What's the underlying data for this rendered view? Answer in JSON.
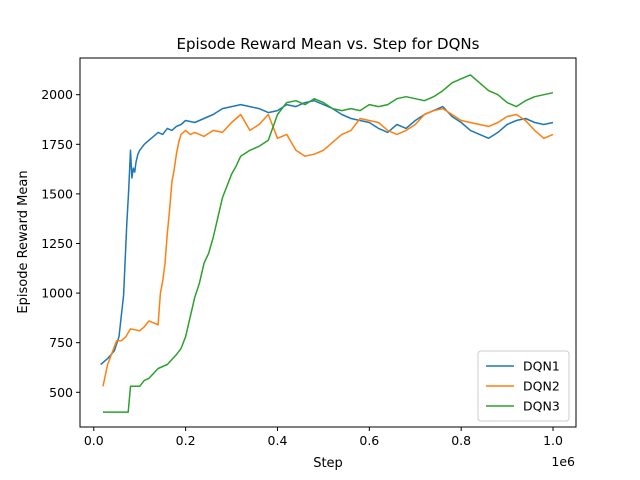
{
  "chart_data": {
    "type": "line",
    "title": "Episode Reward Mean vs. Step for DQNs",
    "xlabel": "Step",
    "ylabel": "Episode Reward Mean",
    "x_offset_label": "1e6",
    "xlim": [
      -30000,
      1050000
    ],
    "ylim": [
      325,
      2185
    ],
    "x_ticks": [
      0,
      200000,
      400000,
      600000,
      800000,
      1000000
    ],
    "x_tick_labels": [
      "0.0",
      "0.2",
      "0.4",
      "0.6",
      "0.8",
      "1.0"
    ],
    "y_ticks": [
      500,
      750,
      1000,
      1250,
      1500,
      1750,
      2000
    ],
    "y_tick_labels": [
      "500",
      "750",
      "1000",
      "1250",
      "1500",
      "1750",
      "2000"
    ],
    "grid": false,
    "legend_position": "lower-right",
    "series": [
      {
        "name": "DQN1",
        "color": "#1f77b4",
        "x": [
          15000,
          30000,
          45000,
          55000,
          65000,
          72000,
          76000,
          80000,
          83000,
          86000,
          89000,
          92000,
          96000,
          100000,
          110000,
          120000,
          130000,
          140000,
          150000,
          160000,
          170000,
          180000,
          190000,
          200000,
          220000,
          240000,
          260000,
          280000,
          300000,
          320000,
          340000,
          360000,
          380000,
          400000,
          420000,
          440000,
          460000,
          480000,
          500000,
          520000,
          540000,
          560000,
          580000,
          600000,
          620000,
          640000,
          660000,
          680000,
          700000,
          720000,
          740000,
          760000,
          780000,
          800000,
          820000,
          840000,
          860000,
          880000,
          900000,
          920000,
          940000,
          960000,
          980000,
          1000000
        ],
        "y": [
          640,
          670,
          710,
          780,
          990,
          1350,
          1520,
          1720,
          1580,
          1630,
          1610,
          1660,
          1700,
          1720,
          1750,
          1770,
          1790,
          1810,
          1800,
          1830,
          1820,
          1840,
          1850,
          1870,
          1860,
          1880,
          1900,
          1930,
          1940,
          1950,
          1940,
          1930,
          1910,
          1920,
          1950,
          1940,
          1960,
          1970,
          1950,
          1930,
          1900,
          1880,
          1870,
          1860,
          1830,
          1810,
          1850,
          1830,
          1870,
          1900,
          1920,
          1940,
          1890,
          1860,
          1820,
          1800,
          1780,
          1810,
          1850,
          1870,
          1880,
          1860,
          1850,
          1860
        ]
      },
      {
        "name": "DQN2",
        "color": "#ff7f0e",
        "x": [
          20000,
          30000,
          40000,
          50000,
          60000,
          70000,
          80000,
          90000,
          100000,
          110000,
          120000,
          130000,
          140000,
          145000,
          150000,
          155000,
          160000,
          165000,
          170000,
          175000,
          180000,
          185000,
          190000,
          195000,
          200000,
          210000,
          220000,
          240000,
          260000,
          280000,
          300000,
          320000,
          340000,
          360000,
          380000,
          400000,
          420000,
          440000,
          460000,
          480000,
          500000,
          520000,
          540000,
          560000,
          580000,
          600000,
          620000,
          640000,
          660000,
          680000,
          700000,
          720000,
          740000,
          760000,
          780000,
          800000,
          820000,
          840000,
          860000,
          880000,
          900000,
          920000,
          940000,
          960000,
          980000,
          1000000
        ],
        "y": [
          530,
          640,
          700,
          760,
          760,
          780,
          820,
          815,
          810,
          830,
          860,
          850,
          840,
          1000,
          1060,
          1150,
          1300,
          1420,
          1560,
          1620,
          1700,
          1760,
          1800,
          1810,
          1820,
          1800,
          1810,
          1790,
          1820,
          1810,
          1860,
          1900,
          1820,
          1850,
          1900,
          1780,
          1800,
          1720,
          1690,
          1700,
          1720,
          1760,
          1800,
          1820,
          1880,
          1870,
          1860,
          1820,
          1800,
          1820,
          1850,
          1900,
          1920,
          1930,
          1900,
          1870,
          1860,
          1850,
          1840,
          1860,
          1890,
          1900,
          1870,
          1820,
          1780,
          1800
        ]
      },
      {
        "name": "DQN3",
        "color": "#2ca02c",
        "x": [
          20000,
          40000,
          60000,
          75000,
          80000,
          90000,
          100000,
          110000,
          120000,
          140000,
          160000,
          180000,
          190000,
          200000,
          210000,
          220000,
          230000,
          240000,
          250000,
          260000,
          270000,
          280000,
          290000,
          300000,
          310000,
          320000,
          340000,
          360000,
          380000,
          400000,
          420000,
          440000,
          460000,
          480000,
          500000,
          520000,
          540000,
          560000,
          580000,
          600000,
          620000,
          640000,
          660000,
          680000,
          700000,
          720000,
          740000,
          760000,
          780000,
          800000,
          820000,
          840000,
          860000,
          880000,
          900000,
          920000,
          940000,
          960000,
          980000,
          1000000
        ],
        "y": [
          400,
          400,
          400,
          400,
          530,
          530,
          530,
          560,
          570,
          620,
          640,
          690,
          720,
          780,
          880,
          980,
          1050,
          1150,
          1200,
          1280,
          1380,
          1480,
          1540,
          1600,
          1640,
          1690,
          1720,
          1740,
          1770,
          1900,
          1960,
          1970,
          1950,
          1980,
          1960,
          1930,
          1920,
          1930,
          1920,
          1950,
          1940,
          1950,
          1980,
          1990,
          1980,
          1970,
          1990,
          2020,
          2060,
          2080,
          2100,
          2060,
          2020,
          2000,
          1960,
          1940,
          1970,
          1990,
          2000,
          2010
        ]
      }
    ]
  }
}
